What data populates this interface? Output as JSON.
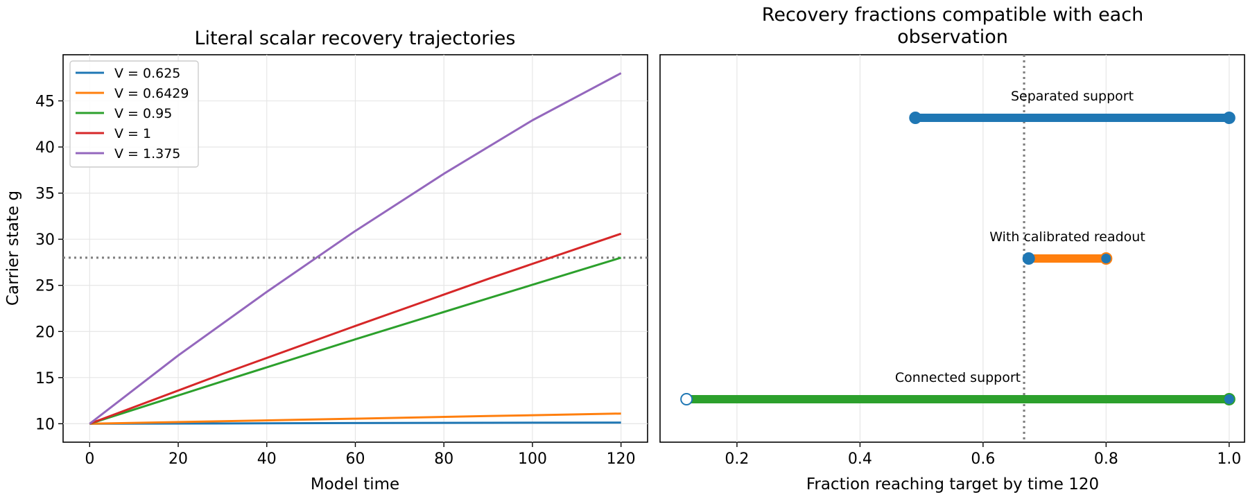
{
  "chart_data": [
    {
      "type": "line",
      "title": "Literal scalar recovery trajectories",
      "xlabel": "Model time",
      "ylabel": "Carrier state g",
      "xlim": [
        -6,
        126
      ],
      "ylim": [
        8,
        50
      ],
      "xticks": [
        0,
        20,
        40,
        60,
        80,
        100,
        120
      ],
      "yticks": [
        10,
        15,
        20,
        25,
        30,
        35,
        40,
        45
      ],
      "grid": true,
      "legend": "upper-left",
      "reference_line": {
        "y": 28,
        "style": "dotted",
        "color": "#808080"
      },
      "series": [
        {
          "name": "V = 0.625",
          "color": "#1f77b4",
          "x": [
            0,
            30,
            60,
            90,
            120
          ],
          "y": [
            10,
            10.03,
            10.07,
            10.1,
            10.13
          ]
        },
        {
          "name": "V = 0.6429",
          "color": "#ff7f0e",
          "x": [
            0,
            30,
            60,
            90,
            120
          ],
          "y": [
            10,
            10.27,
            10.55,
            10.83,
            11.1
          ]
        },
        {
          "name": "V = 0.95",
          "color": "#2ca02c",
          "x": [
            0,
            30,
            60,
            90,
            120
          ],
          "y": [
            10,
            14.6,
            19.15,
            23.6,
            28
          ]
        },
        {
          "name": "V = 1",
          "color": "#d62728",
          "x": [
            0,
            30,
            60,
            90,
            120
          ],
          "y": [
            10,
            15.4,
            20.6,
            25.7,
            30.6
          ]
        },
        {
          "name": "V = 1.375",
          "color": "#9467bd",
          "x": [
            0,
            20,
            40,
            60,
            80,
            100,
            120
          ],
          "y": [
            10,
            17.4,
            24.3,
            30.9,
            37.1,
            42.9,
            48
          ]
        }
      ]
    },
    {
      "type": "interval",
      "title": "Recovery fractions compatible with each\nobservation",
      "xlabel": "Fraction reaching target by time 120",
      "xlim": [
        0.075,
        1.025
      ],
      "xticks": [
        0.2,
        0.4,
        0.6,
        0.8,
        1.0
      ],
      "grid": true,
      "reference_line": {
        "x": 0.6667,
        "style": "dotted",
        "color": "#808080"
      },
      "intervals": [
        {
          "label": "Separated support",
          "low": 0.49,
          "high": 1.0,
          "color": "#1f77b4",
          "low_open": false,
          "high_open": false
        },
        {
          "label": "With calibrated readout",
          "low": 0.6742,
          "high": 0.8,
          "color": "#ff7f0e",
          "low_open": false,
          "high_open": false
        },
        {
          "label": "Connected support",
          "low": 0.118,
          "high": 1.0,
          "color": "#2ca02c",
          "low_open": true,
          "high_open": false
        }
      ]
    }
  ]
}
